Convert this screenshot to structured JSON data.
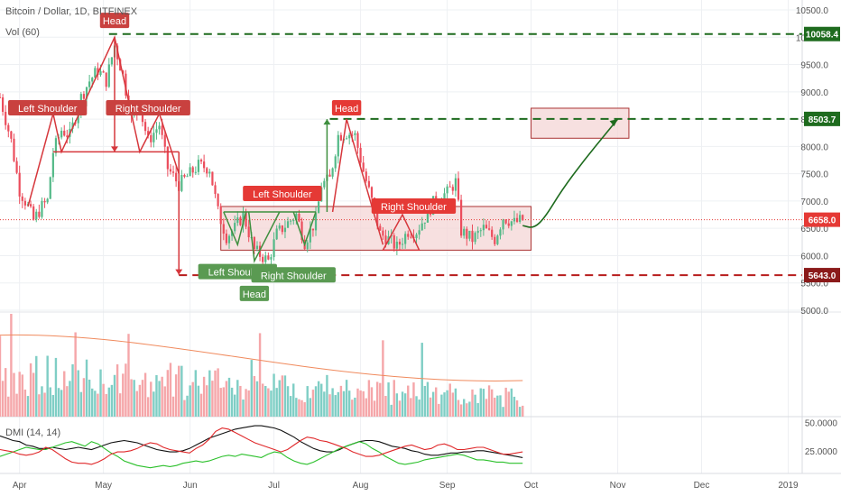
{
  "header": {
    "title": "Bitcoin / Dollar, 1D, BITFINEX",
    "vol_label": "Vol (60)",
    "dmi_label": "DMI (14, 14)"
  },
  "colors": {
    "up": "#53b987",
    "down": "#eb4d5c",
    "vol_up": "#7fcec5",
    "vol_down": "#f5a6a9",
    "resistance": "#1e6b1e",
    "support": "#b71c1c",
    "current": "#e53935",
    "zone_fill": "#f4d6d6",
    "zone_stroke": "#a33",
    "bear_pattern": "#d6373c",
    "bull_pattern": "#3f8f3f",
    "bear_label": "#c9413f",
    "bull_label": "#5a9a52",
    "dmi_plus": "#2bc02b",
    "dmi_minus": "#e0282a",
    "adx": "#111111",
    "vol_ma": "#f08a5d"
  },
  "chart_data": [
    {
      "type": "line",
      "name": "price",
      "x_tick_labels": [
        "Apr",
        "May",
        "Jun",
        "Jul",
        "Aug",
        "Sep",
        "Oct",
        "Nov",
        "Dec",
        "2019"
      ],
      "x_range": [
        "2018-03-25",
        "2019-01-06"
      ],
      "ylim": [
        5000,
        10500
      ],
      "y_tick_labels": [
        "10500.0",
        "10000.0",
        "9500.0",
        "9000.0",
        "8500.0",
        "8000.0",
        "7500.0",
        "7000.0",
        "6500.0",
        "6000.0",
        "5500.0",
        "5000.0"
      ],
      "y_ticks": [
        10500,
        10000,
        9500,
        9000,
        8500,
        8000,
        7500,
        7000,
        6500,
        6000,
        5500,
        5000
      ],
      "price_series": [
        {
          "date": "2018-03-25",
          "value": 8900
        },
        {
          "date": "2018-03-29",
          "value": 8100
        },
        {
          "date": "2018-04-01",
          "value": 7200
        },
        {
          "date": "2018-04-04",
          "value": 6900
        },
        {
          "date": "2018-04-06",
          "value": 6650
        },
        {
          "date": "2018-04-09",
          "value": 6900
        },
        {
          "date": "2018-04-11",
          "value": 7000
        },
        {
          "date": "2018-04-13",
          "value": 7900
        },
        {
          "date": "2018-04-16",
          "value": 8300
        },
        {
          "date": "2018-04-19",
          "value": 8200
        },
        {
          "date": "2018-04-23",
          "value": 8900
        },
        {
          "date": "2018-04-26",
          "value": 9200
        },
        {
          "date": "2018-04-29",
          "value": 9400
        },
        {
          "date": "2018-05-02",
          "value": 9200
        },
        {
          "date": "2018-05-05",
          "value": 9850
        },
        {
          "date": "2018-05-08",
          "value": 9300
        },
        {
          "date": "2018-05-11",
          "value": 8500
        },
        {
          "date": "2018-05-14",
          "value": 8700
        },
        {
          "date": "2018-05-17",
          "value": 8100
        },
        {
          "date": "2018-05-21",
          "value": 8400
        },
        {
          "date": "2018-05-24",
          "value": 7600
        },
        {
          "date": "2018-05-28",
          "value": 7300
        },
        {
          "date": "2018-06-01",
          "value": 7500
        },
        {
          "date": "2018-06-04",
          "value": 7650
        },
        {
          "date": "2018-06-08",
          "value": 7600
        },
        {
          "date": "2018-06-11",
          "value": 6800
        },
        {
          "date": "2018-06-14",
          "value": 6350
        },
        {
          "date": "2018-06-17",
          "value": 6500
        },
        {
          "date": "2018-06-20",
          "value": 6750
        },
        {
          "date": "2018-06-24",
          "value": 6100
        },
        {
          "date": "2018-06-29",
          "value": 5900
        },
        {
          "date": "2018-07-02",
          "value": 6400
        },
        {
          "date": "2018-07-06",
          "value": 6600
        },
        {
          "date": "2018-07-09",
          "value": 6750
        },
        {
          "date": "2018-07-12",
          "value": 6250
        },
        {
          "date": "2018-07-16",
          "value": 6650
        },
        {
          "date": "2018-07-18",
          "value": 7300
        },
        {
          "date": "2018-07-21",
          "value": 7400
        },
        {
          "date": "2018-07-24",
          "value": 8200
        },
        {
          "date": "2018-07-27",
          "value": 8250
        },
        {
          "date": "2018-07-30",
          "value": 8200
        },
        {
          "date": "2018-08-02",
          "value": 7550
        },
        {
          "date": "2018-08-05",
          "value": 7000
        },
        {
          "date": "2018-08-08",
          "value": 6400
        },
        {
          "date": "2018-08-11",
          "value": 6300
        },
        {
          "date": "2018-08-14",
          "value": 6150
        },
        {
          "date": "2018-08-18",
          "value": 6450
        },
        {
          "date": "2018-08-21",
          "value": 6450
        },
        {
          "date": "2018-08-24",
          "value": 6700
        },
        {
          "date": "2018-08-28",
          "value": 7050
        },
        {
          "date": "2018-09-01",
          "value": 7150
        },
        {
          "date": "2018-09-04",
          "value": 7350
        },
        {
          "date": "2018-09-06",
          "value": 6450
        },
        {
          "date": "2018-09-10",
          "value": 6300
        },
        {
          "date": "2018-09-14",
          "value": 6500
        },
        {
          "date": "2018-09-18",
          "value": 6300
        },
        {
          "date": "2018-09-21",
          "value": 6700
        },
        {
          "date": "2018-09-25",
          "value": 6600
        },
        {
          "date": "2018-09-28",
          "value": 6658
        }
      ],
      "current_price": {
        "label": "6658.0",
        "value": 6658
      },
      "levels": [
        {
          "label": "10058.4",
          "value": 10058.4,
          "kind": "resistance"
        },
        {
          "label": "8503.7",
          "value": 8503.7,
          "kind": "resistance"
        },
        {
          "label": "5643.0",
          "value": 5643.0,
          "kind": "support"
        }
      ],
      "zones": [
        {
          "x1": "2018-06-12",
          "x2": "2018-10-01",
          "y1": 6100,
          "y2": 6900
        },
        {
          "x1": "2018-10-01",
          "x2": "2018-11-05",
          "y1": 8150,
          "y2": 8700
        }
      ],
      "projection": [
        {
          "date": "2018-09-28",
          "value": 6550
        },
        {
          "date": "2018-10-02",
          "value": 6500
        },
        {
          "date": "2018-10-06",
          "value": 6700
        },
        {
          "date": "2018-10-12",
          "value": 7200
        },
        {
          "date": "2018-10-20",
          "value": 7750
        },
        {
          "date": "2018-10-28",
          "value": 8250
        },
        {
          "date": "2018-11-01",
          "value": 8500
        }
      ],
      "patterns": {
        "bearish_1": {
          "left_shoulder": {
            "label": "Left Shoulder",
            "date": "2018-04-11",
            "value": 8700
          },
          "head": {
            "label": "Head",
            "date": "2018-05-05",
            "value": 10300
          },
          "right_shoulder": {
            "label": "Right Shoulder",
            "date": "2018-05-17",
            "value": 8700
          },
          "neckline": [
            {
              "date": "2018-04-13",
              "value": 7900
            },
            {
              "date": "2018-05-28",
              "value": 7900
            }
          ],
          "path": [
            {
              "date": "2018-04-04",
              "value": 6900
            },
            {
              "date": "2018-04-13",
              "value": 8600
            },
            {
              "date": "2018-04-16",
              "value": 7900
            },
            {
              "date": "2018-05-05",
              "value": 10000
            },
            {
              "date": "2018-05-14",
              "value": 7900
            },
            {
              "date": "2018-05-21",
              "value": 8600
            },
            {
              "date": "2018-05-28",
              "value": 7500
            }
          ],
          "head_drop": [
            {
              "date": "2018-05-05",
              "value": 10000
            },
            {
              "date": "2018-05-05",
              "value": 7900
            }
          ],
          "target_drop": [
            {
              "date": "2018-05-28",
              "value": 7900
            },
            {
              "date": "2018-05-28",
              "value": 5650
            }
          ]
        },
        "bullish": {
          "left_shoulder": {
            "label": "Left Shoulder",
            "date": "2018-06-18",
            "value": 5700
          },
          "head": {
            "label": "Head",
            "date": "2018-06-24",
            "value": 5300
          },
          "right_shoulder": {
            "label": "Right Shoulder",
            "date": "2018-07-08",
            "value": 5640
          },
          "top_label": {
            "label": "Left Shoulder",
            "date": "2018-07-04",
            "value": 7130
          },
          "neckline": [
            {
              "date": "2018-06-13",
              "value": 6800
            },
            {
              "date": "2018-07-16",
              "value": 6800
            }
          ],
          "triangles": [
            [
              {
                "date": "2018-06-13",
                "value": 6800
              },
              {
                "date": "2018-06-18",
                "value": 6200
              },
              {
                "date": "2018-06-21",
                "value": 6800
              }
            ],
            [
              {
                "date": "2018-06-22",
                "value": 6800
              },
              {
                "date": "2018-06-24",
                "value": 5900
              },
              {
                "date": "2018-07-03",
                "value": 6800
              }
            ],
            [
              {
                "date": "2018-07-08",
                "value": 6800
              },
              {
                "date": "2018-07-12",
                "value": 6200
              },
              {
                "date": "2018-07-16",
                "value": 6800
              }
            ]
          ],
          "target_rise": [
            {
              "date": "2018-07-20",
              "value": 6800
            },
            {
              "date": "2018-07-20",
              "value": 8500
            }
          ]
        },
        "bearish_2": {
          "head": {
            "label": "Head",
            "date": "2018-07-27",
            "value": 8700
          },
          "right_shoulder": {
            "label": "Right Shoulder",
            "date": "2018-08-20",
            "value": 6900
          },
          "shoulder_box": [
            {
              "date": "2018-08-09",
              "value": 6100
            },
            {
              "date": "2018-08-16",
              "value": 6750
            },
            {
              "date": "2018-08-22",
              "value": 6100
            }
          ]
        }
      },
      "grid": true
    },
    {
      "type": "bar",
      "name": "volume",
      "note_scale": "relative",
      "up_down_pattern": [
        1,
        0,
        0,
        1,
        0,
        1,
        0,
        0,
        1,
        1,
        0,
        1,
        0,
        1,
        1,
        0,
        0,
        1,
        0,
        1,
        1,
        0,
        1,
        0,
        0,
        1,
        0,
        1,
        1,
        0,
        0,
        1,
        0,
        1,
        0,
        0,
        1,
        1,
        0,
        1,
        0,
        0,
        1,
        0,
        1,
        1,
        0,
        0,
        1,
        0,
        1,
        0,
        1,
        1,
        0,
        0,
        1,
        0,
        1,
        0,
        0,
        1,
        1,
        0,
        1,
        0,
        1,
        0,
        0,
        1,
        1,
        0,
        1,
        0,
        0,
        1,
        0,
        1,
        1,
        0,
        0,
        1,
        0,
        1,
        0,
        1,
        1,
        0,
        0,
        1,
        0,
        1,
        0,
        0,
        1,
        1,
        0,
        1,
        0,
        1,
        0,
        0,
        1,
        0,
        1,
        1,
        0,
        0,
        1,
        0,
        1,
        0,
        1,
        1,
        0,
        0,
        1,
        0,
        1,
        0,
        0,
        1,
        1,
        0,
        1,
        0,
        0,
        1,
        0,
        1,
        0,
        1,
        1,
        0,
        0,
        1,
        0,
        1,
        0,
        0,
        1,
        1,
        0,
        1,
        0,
        1,
        0,
        0,
        1,
        0,
        1,
        1,
        0,
        0,
        1,
        0,
        1,
        0,
        1,
        1,
        0,
        0,
        1,
        0,
        1,
        0,
        0,
        1,
        1,
        0,
        1,
        0,
        0,
        1,
        0,
        1,
        0,
        1,
        1,
        0,
        0,
        1,
        0,
        1
      ],
      "ma_label": "",
      "ma_start": 0.95,
      "ma_end": 0.42
    },
    {
      "type": "line",
      "name": "dmi",
      "y_tick_labels": [
        "50.0000",
        "25.0000"
      ],
      "y_ticks": [
        50,
        25
      ],
      "ylim": [
        5,
        55
      ],
      "series": [
        {
          "key": "adx",
          "values": [
            38,
            36,
            34,
            33,
            30,
            29,
            27,
            27,
            28,
            27,
            26,
            27,
            28,
            27,
            26,
            28,
            30,
            32,
            33,
            34,
            33,
            32,
            30,
            28,
            26,
            25,
            24,
            24,
            25,
            27,
            30,
            33,
            36,
            38,
            40,
            42,
            44,
            45,
            46,
            47,
            47,
            46,
            45,
            43,
            40,
            37,
            33,
            30,
            27,
            25,
            24,
            24,
            26,
            29,
            31,
            33,
            34,
            34,
            33,
            31,
            29,
            28,
            27,
            25,
            24,
            22,
            21,
            21,
            22,
            23,
            23,
            24,
            24,
            25,
            25,
            24,
            23,
            22,
            21,
            20,
            19
          ]
        },
        {
          "key": "plus",
          "values": [
            20,
            22,
            24,
            26,
            28,
            27,
            26,
            26,
            28,
            30,
            32,
            33,
            31,
            29,
            33,
            31,
            27,
            23,
            20,
            16,
            14,
            12,
            11,
            10,
            11,
            12,
            11,
            12,
            14,
            15,
            16,
            15,
            16,
            18,
            20,
            21,
            20,
            22,
            21,
            20,
            19,
            22,
            24,
            23,
            19,
            16,
            14,
            13,
            15,
            18,
            21,
            24,
            27,
            29,
            31,
            33,
            31,
            27,
            24,
            20,
            17,
            14,
            13,
            14,
            15,
            17,
            18,
            19,
            20,
            21,
            22,
            21,
            19,
            17,
            17,
            16,
            15,
            15,
            14,
            14,
            14
          ]
        },
        {
          "key": "minus",
          "values": [
            26,
            25,
            24,
            22,
            21,
            22,
            24,
            28,
            26,
            22,
            18,
            15,
            14,
            14,
            13,
            15,
            18,
            22,
            24,
            24,
            25,
            27,
            30,
            32,
            31,
            28,
            26,
            25,
            24,
            23,
            27,
            30,
            35,
            42,
            45,
            44,
            41,
            38,
            35,
            32,
            30,
            28,
            26,
            24,
            26,
            30,
            34,
            37,
            36,
            34,
            33,
            31,
            29,
            27,
            24,
            22,
            20,
            20,
            21,
            23,
            25,
            27,
            29,
            30,
            28,
            26,
            27,
            30,
            31,
            29,
            26,
            26,
            27,
            28,
            28,
            26,
            24,
            22,
            22,
            23,
            24
          ]
        }
      ]
    }
  ]
}
